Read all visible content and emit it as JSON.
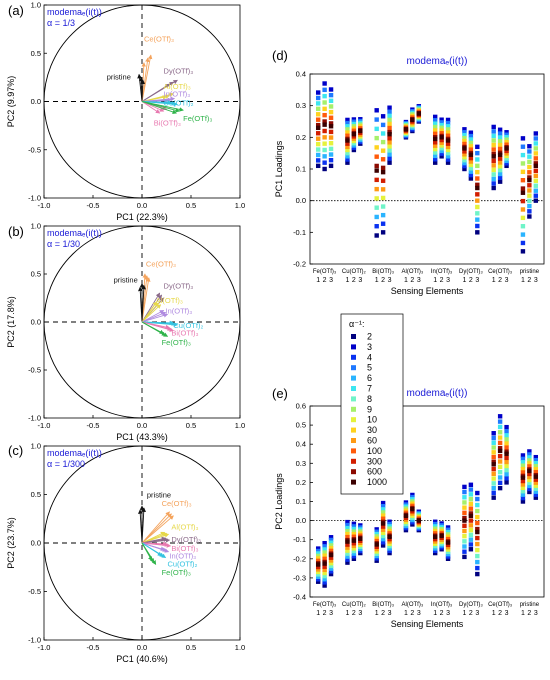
{
  "colors": {
    "Ce": "#f4a35c",
    "Dy": "#8b6a8a",
    "Al": "#e6d84a",
    "In": "#b08be0",
    "Cu": "#35c3e0",
    "Bi": "#e879b0",
    "Fe": "#2fb34a",
    "pristine": "#111111",
    "title": "#1a1ad6",
    "axis": "#000000"
  },
  "alpha_legend": {
    "title": "α⁻¹:",
    "entries": [
      {
        "label": "2",
        "color": "#00007f"
      },
      {
        "label": "3",
        "color": "#0000c8"
      },
      {
        "label": "4",
        "color": "#0a32f0"
      },
      {
        "label": "5",
        "color": "#1e78ff"
      },
      {
        "label": "6",
        "color": "#2ab4ff"
      },
      {
        "label": "7",
        "color": "#3ce6f0"
      },
      {
        "label": "8",
        "color": "#6ff4c8"
      },
      {
        "label": "9",
        "color": "#a6f06a"
      },
      {
        "label": "10",
        "color": "#e5f23c"
      },
      {
        "label": "30",
        "color": "#ffd21e"
      },
      {
        "label": "60",
        "color": "#ff9a14"
      },
      {
        "label": "100",
        "color": "#ff5a0a"
      },
      {
        "label": "300",
        "color": "#d21e00"
      },
      {
        "label": "600",
        "color": "#8c0a00"
      },
      {
        "label": "1000",
        "color": "#3c0000"
      }
    ]
  },
  "chart_data": [
    {
      "panel": "(a)",
      "type": "scatter",
      "title": "modemaₑ(i(t))",
      "subtitle": "α = 1/3",
      "xlabel": "PC1 (22.3%)",
      "ylabel": "PC2 (9.97%)",
      "xlim": [
        -1,
        1
      ],
      "ylim": [
        -1,
        1
      ],
      "xticks": [
        "-1.0",
        "-0.5",
        "0.0",
        "0.5",
        "1.0"
      ],
      "yticks": [
        "-1.0",
        "-0.5",
        "0.0",
        "0.5",
        "1.0"
      ],
      "loadings": [
        {
          "name": "Ce(OTf)₃",
          "key": "Ce",
          "vectors": [
            [
              0.02,
              0.4
            ],
            [
              0.06,
              0.45
            ],
            [
              0.09,
              0.48
            ]
          ],
          "label_at": [
            0.02,
            0.62
          ]
        },
        {
          "name": "pristine",
          "key": "pristine",
          "vectors": [
            [
              -0.03,
              0.28
            ],
            [
              -0.01,
              0.25
            ],
            [
              0.01,
              0.22
            ]
          ],
          "label_at": [
            -0.36,
            0.23
          ]
        },
        {
          "name": "Dy(OTf)₃",
          "key": "Dy",
          "vectors": [
            [
              0.32,
              0.2
            ],
            [
              0.36,
              0.22
            ],
            [
              0.28,
              0.18
            ]
          ],
          "label_at": [
            0.22,
            0.29
          ]
        },
        {
          "name": "Al(OTf)₃",
          "key": "Al",
          "vectors": [
            [
              0.28,
              0.06
            ],
            [
              0.32,
              0.08
            ],
            [
              0.25,
              0.05
            ]
          ],
          "label_at": [
            0.22,
            0.13
          ]
        },
        {
          "name": "In(OTf)₃",
          "key": "In",
          "vectors": [
            [
              0.3,
              0.02
            ],
            [
              0.33,
              0.03
            ],
            [
              0.27,
              0.01
            ]
          ],
          "label_at": [
            0.22,
            0.05
          ]
        },
        {
          "name": "Cu(OTf)₂",
          "key": "Cu",
          "vectors": [
            [
              0.34,
              -0.02
            ],
            [
              0.3,
              -0.01
            ],
            [
              0.36,
              -0.03
            ]
          ],
          "label_at": [
            0.22,
            -0.04
          ]
        },
        {
          "name": "Bi(OTf)₃",
          "key": "Bi",
          "vectors": [
            [
              0.22,
              -0.1
            ],
            [
              0.18,
              -0.12
            ],
            [
              0.25,
              -0.08
            ]
          ],
          "label_at": [
            0.12,
            -0.25
          ]
        },
        {
          "name": "Fe(OTf)₃",
          "key": "Fe",
          "vectors": [
            [
              0.38,
              -0.1
            ],
            [
              0.42,
              -0.09
            ],
            [
              0.35,
              -0.12
            ]
          ],
          "label_at": [
            0.42,
            -0.2
          ]
        }
      ]
    },
    {
      "panel": "(b)",
      "type": "scatter",
      "title": "modemaₑ(i(t))",
      "subtitle": "α = 1/30",
      "xlabel": "PC1 (43.3%)",
      "ylabel": "PC2 (17.8%)",
      "xlim": [
        -1,
        1
      ],
      "ylim": [
        -1,
        1
      ],
      "xticks": [
        "-1.0",
        "-0.5",
        "0.0",
        "0.5",
        "1.0"
      ],
      "yticks": [
        "-1.0",
        "-0.5",
        "0.0",
        "0.5",
        "1.0"
      ],
      "loadings": [
        {
          "name": "Ce(OTf)₃",
          "key": "Ce",
          "vectors": [
            [
              0.03,
              0.5
            ],
            [
              0.05,
              0.48
            ],
            [
              0.07,
              0.46
            ]
          ],
          "label_at": [
            0.04,
            0.58
          ]
        },
        {
          "name": "pristine",
          "key": "pristine",
          "vectors": [
            [
              0.0,
              0.4
            ],
            [
              0.02,
              0.38
            ],
            [
              -0.02,
              0.36
            ]
          ],
          "label_at": [
            -0.29,
            0.41
          ]
        },
        {
          "name": "Dy(OTf)₃",
          "key": "Dy",
          "vectors": [
            [
              0.2,
              0.28
            ],
            [
              0.22,
              0.25
            ],
            [
              0.18,
              0.3
            ]
          ],
          "label_at": [
            0.22,
            0.35
          ]
        },
        {
          "name": "Al(OTf)₃",
          "key": "Al",
          "vectors": [
            [
              0.17,
              0.2
            ],
            [
              0.19,
              0.18
            ],
            [
              0.15,
              0.21
            ]
          ],
          "label_at": [
            0.14,
            0.2
          ]
        },
        {
          "name": "In(OTf)₃",
          "key": "In",
          "vectors": [
            [
              0.24,
              0.1
            ],
            [
              0.26,
              0.08
            ],
            [
              0.22,
              0.12
            ]
          ],
          "label_at": [
            0.24,
            0.09
          ]
        },
        {
          "name": "Cu(OTf)₂",
          "key": "Cu",
          "vectors": [
            [
              0.34,
              -0.02
            ],
            [
              0.36,
              -0.03
            ],
            [
              0.32,
              -0.01
            ]
          ],
          "label_at": [
            0.32,
            -0.06
          ]
        },
        {
          "name": "Bi(OTf)₃",
          "key": "Bi",
          "vectors": [
            [
              0.3,
              -0.08
            ],
            [
              0.28,
              -0.06
            ],
            [
              0.32,
              -0.09
            ]
          ],
          "label_at": [
            0.3,
            -0.14
          ]
        },
        {
          "name": "Fe(OTf)₃",
          "key": "Fe",
          "vectors": [
            [
              0.24,
              -0.14
            ],
            [
              0.22,
              -0.12
            ],
            [
              0.26,
              -0.15
            ]
          ],
          "label_at": [
            0.2,
            -0.24
          ]
        }
      ]
    },
    {
      "panel": "(c)",
      "type": "scatter",
      "title": "modemaₑ(i(t))",
      "subtitle": "α = 1/300",
      "xlabel": "PC1 (40.6%)",
      "ylabel": "PC2 (23.7%)",
      "xlim": [
        -1,
        1
      ],
      "ylim": [
        -1,
        1
      ],
      "xticks": [
        "-1.0",
        "-0.5",
        "0.0",
        "0.5",
        "1.0"
      ],
      "yticks": [
        "-1.0",
        "-0.5",
        "0.0",
        "0.5",
        "1.0"
      ],
      "loadings": [
        {
          "name": "pristine",
          "key": "pristine",
          "vectors": [
            [
              0.0,
              0.38
            ],
            [
              0.02,
              0.36
            ],
            [
              -0.02,
              0.34
            ]
          ],
          "label_at": [
            0.05,
            0.47
          ]
        },
        {
          "name": "Ce(OTf)₃",
          "key": "Ce",
          "vectors": [
            [
              0.3,
              0.3
            ],
            [
              0.32,
              0.28
            ],
            [
              0.28,
              0.32
            ]
          ],
          "label_at": [
            0.2,
            0.38
          ]
        },
        {
          "name": "Al(OTf)₃",
          "key": "Al",
          "vectors": [
            [
              0.25,
              0.1
            ],
            [
              0.27,
              0.09
            ],
            [
              0.23,
              0.11
            ]
          ],
          "label_at": [
            0.3,
            0.14
          ]
        },
        {
          "name": "Dy(OTf)₃",
          "key": "Dy",
          "vectors": [
            [
              0.26,
              0.04
            ],
            [
              0.28,
              0.03
            ],
            [
              0.24,
              0.05
            ]
          ],
          "label_at": [
            0.3,
            0.01
          ]
        },
        {
          "name": "Bi(OTf)₃",
          "key": "Bi",
          "vectors": [
            [
              0.27,
              -0.02
            ],
            [
              0.29,
              -0.03
            ],
            [
              0.25,
              -0.01
            ]
          ],
          "label_at": [
            0.3,
            -0.08
          ]
        },
        {
          "name": "In(OTf)₃",
          "key": "In",
          "vectors": [
            [
              0.25,
              -0.08
            ],
            [
              0.27,
              -0.09
            ],
            [
              0.23,
              -0.07
            ]
          ],
          "label_at": [
            0.28,
            -0.16
          ]
        },
        {
          "name": "Cu(OTf)₂",
          "key": "Cu",
          "vectors": [
            [
              0.22,
              -0.14
            ],
            [
              0.24,
              -0.15
            ],
            [
              0.2,
              -0.13
            ]
          ],
          "label_at": [
            0.26,
            -0.24
          ]
        },
        {
          "name": "Fe(OTf)₃",
          "key": "Fe",
          "vectors": [
            [
              0.12,
              -0.2
            ],
            [
              0.14,
              -0.22
            ],
            [
              0.1,
              -0.18
            ]
          ],
          "label_at": [
            0.2,
            -0.33
          ]
        }
      ]
    },
    {
      "panel": "(d)",
      "type": "scatter",
      "title": "modemaₑ(i(t))",
      "xlabel": "Sensing Elements",
      "ylabel": "PC1 Loadings",
      "ylim": [
        -0.2,
        0.4
      ],
      "yticks": [
        "-0.2",
        "-0.1",
        "0.0",
        "0.1",
        "0.2",
        "0.3",
        "0.4"
      ],
      "groups": [
        "Fe(OTf)₃",
        "Cu(OTf)₂",
        "Bi(OTf)₃",
        "Al(OTf)₃",
        "In(OTf)₃",
        "Dy(OTf)₃",
        "Ce(OTf)₃",
        "pristine"
      ],
      "replicates": [
        "1",
        "2",
        "3"
      ],
      "ranges": [
        [
          [
            0.11,
            0.35
          ],
          [
            0.1,
            0.38
          ],
          [
            0.11,
            0.36
          ]
        ],
        [
          [
            0.12,
            0.26
          ],
          [
            0.16,
            0.26
          ],
          [
            0.18,
            0.26
          ]
        ],
        [
          [
            -0.11,
            0.3
          ],
          [
            -0.1,
            0.28
          ],
          [
            0.12,
            0.3
          ]
        ],
        [
          [
            0.2,
            0.25
          ],
          [
            0.22,
            0.29
          ],
          [
            0.25,
            0.3
          ]
        ],
        [
          [
            0.12,
            0.27
          ],
          [
            0.14,
            0.26
          ],
          [
            0.12,
            0.26
          ]
        ],
        [
          [
            0.1,
            0.23
          ],
          [
            0.07,
            0.22
          ],
          [
            -0.1,
            0.18
          ]
        ],
        [
          [
            0.04,
            0.24
          ],
          [
            0.06,
            0.23
          ],
          [
            0.11,
            0.22
          ]
        ],
        [
          [
            -0.16,
            0.21
          ],
          [
            -0.05,
            0.18
          ],
          [
            0.0,
            0.22
          ]
        ]
      ]
    },
    {
      "panel": "(e)",
      "type": "scatter",
      "title": "modemaₑ(i(t))",
      "xlabel": "Sensing Elements",
      "ylabel": "PC2 Loadings",
      "ylim": [
        -0.4,
        0.6
      ],
      "yticks": [
        "-0.4",
        "-0.3",
        "-0.2",
        "-0.1",
        "0.0",
        "0.1",
        "0.2",
        "0.3",
        "0.4",
        "0.5",
        "0.6"
      ],
      "groups": [
        "Fe(OTf)₃",
        "Cu(OTf)₂",
        "Bi(OTf)₃",
        "Al(OTf)₃",
        "In(OTf)₃",
        "Dy(OTf)₃",
        "Ce(OTf)₃",
        "pristine"
      ],
      "replicates": [
        "1",
        "2",
        "3"
      ],
      "ranges": [
        [
          [
            -0.32,
            -0.14
          ],
          [
            -0.34,
            -0.11
          ],
          [
            -0.28,
            -0.08
          ]
        ],
        [
          [
            -0.22,
            0.0
          ],
          [
            -0.2,
            -0.01
          ],
          [
            -0.17,
            -0.02
          ]
        ],
        [
          [
            -0.21,
            -0.04
          ],
          [
            -0.13,
            0.1
          ],
          [
            -0.17,
            0.0
          ]
        ],
        [
          [
            -0.05,
            0.1
          ],
          [
            -0.02,
            0.14
          ],
          [
            -0.05,
            0.05
          ]
        ],
        [
          [
            -0.17,
            0.0
          ],
          [
            -0.15,
            -0.01
          ],
          [
            -0.2,
            -0.03
          ]
        ],
        [
          [
            -0.19,
            0.19
          ],
          [
            -0.15,
            0.2
          ],
          [
            -0.28,
            0.16
          ]
        ],
        [
          [
            0.12,
            0.47
          ],
          [
            0.17,
            0.56
          ],
          [
            0.2,
            0.5
          ]
        ],
        [
          [
            0.1,
            0.35
          ],
          [
            0.15,
            0.37
          ],
          [
            0.12,
            0.34
          ]
        ]
      ]
    }
  ]
}
